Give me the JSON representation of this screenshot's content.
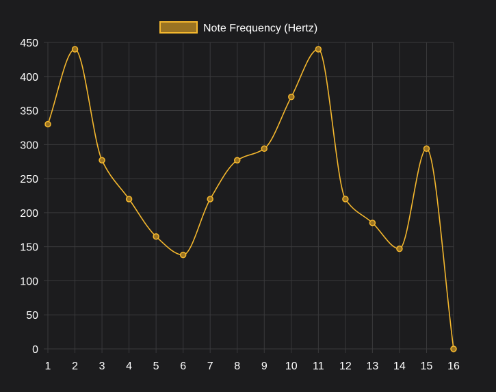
{
  "chart_data": {
    "type": "line",
    "title": "",
    "xlabel": "",
    "ylabel": "",
    "x": [
      "1",
      "2",
      "3",
      "4",
      "5",
      "6",
      "7",
      "8",
      "9",
      "10",
      "11",
      "12",
      "13",
      "14",
      "15",
      "16"
    ],
    "series": [
      {
        "name": "Note Frequency (Hertz)",
        "values": [
          330,
          440,
          277,
          220,
          165,
          138,
          220,
          277,
          294,
          370,
          440,
          220,
          185,
          147,
          294,
          0
        ],
        "color": "#f5b82e",
        "fill": "#9a7322"
      }
    ],
    "ylim": [
      0,
      450
    ],
    "yticks": [
      0,
      50,
      100,
      150,
      200,
      250,
      300,
      350,
      400,
      450
    ],
    "grid": true,
    "legend": "top-center",
    "smooth": true,
    "colors": {
      "background": "#1c1c1e",
      "grid": "#3a3a3c",
      "text": "#ffffff"
    }
  }
}
